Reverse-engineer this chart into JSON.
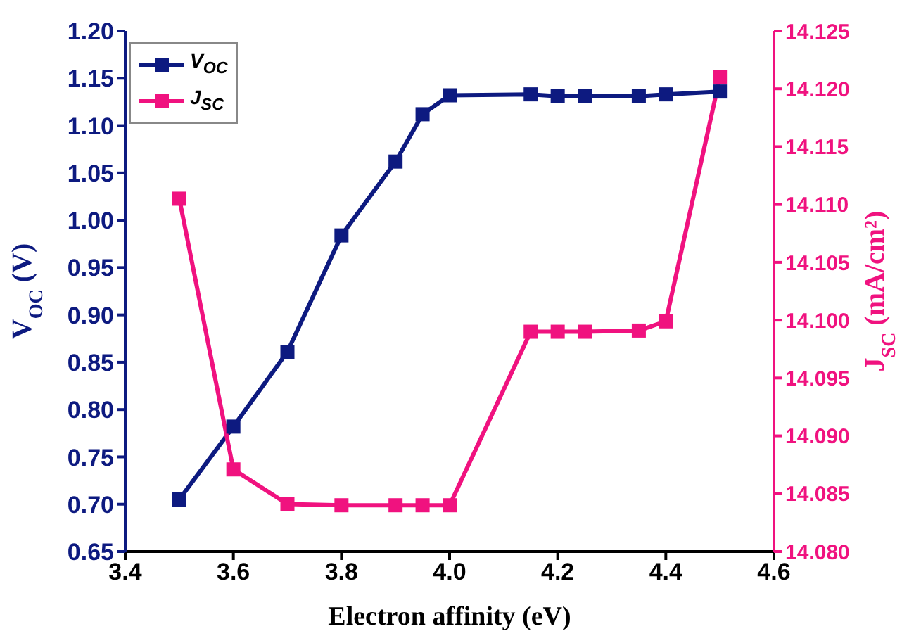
{
  "chart_data": {
    "type": "line",
    "xlabel": "Electron affinity (eV)",
    "ylabel": "V$_{OC}$ (V)",
    "y2label": "J$_{SC}$ (mA/cm²)",
    "x": [
      3.5,
      3.6,
      3.7,
      3.8,
      3.9,
      3.95,
      4.0,
      4.15,
      4.2,
      4.25,
      4.35,
      4.4,
      4.5
    ],
    "series": [
      {
        "name": "V$_{OC}$",
        "color": "#0d1a80",
        "values": [
          0.705,
          0.782,
          0.861,
          0.984,
          1.062,
          1.112,
          1.132,
          1.133,
          1.131,
          1.131,
          1.131,
          1.133,
          1.136
        ]
      },
      {
        "name": "J$_{SC}$",
        "color": "#f0127f",
        "axis": "y2",
        "values": [
          14.1105,
          14.0871,
          14.0841,
          14.084,
          14.084,
          14.084,
          14.084,
          14.099,
          14.099,
          14.099,
          14.0991,
          14.0999,
          14.121
        ]
      }
    ],
    "xlim": [
      3.4,
      4.6
    ],
    "xticks": [
      3.4,
      3.6,
      3.8,
      {
        "value": 4,
        "label": "4.0"
      },
      4.2,
      4.4,
      4.6
    ],
    "ylim": [
      0.65,
      1.2
    ],
    "yticks": [
      0.65,
      {
        "value": 0.7,
        "label": "0.70"
      },
      0.75,
      {
        "value": 0.8,
        "label": "0.80"
      },
      0.85,
      {
        "value": 0.9,
        "label": "0.90"
      },
      0.95,
      {
        "value": 1,
        "label": "1.00"
      },
      1.05,
      {
        "value": 1.1,
        "label": "1.10"
      },
      1.15,
      {
        "value": 1.2,
        "label": "1.20"
      }
    ],
    "y2lim": [
      14.08,
      14.125
    ],
    "y2ticks": [
      {
        "value": 14.08,
        "label": "14.080"
      },
      14.085,
      {
        "value": 14.09,
        "label": "14.090"
      },
      14.095,
      {
        "value": 14.1,
        "label": "14.100"
      },
      14.105,
      {
        "value": 14.11,
        "label": "14.110"
      },
      14.115,
      {
        "value": 14.12,
        "label": "14.120"
      },
      14.125
    ],
    "legend": "top left",
    "marker": "square",
    "line_style": "solid"
  }
}
